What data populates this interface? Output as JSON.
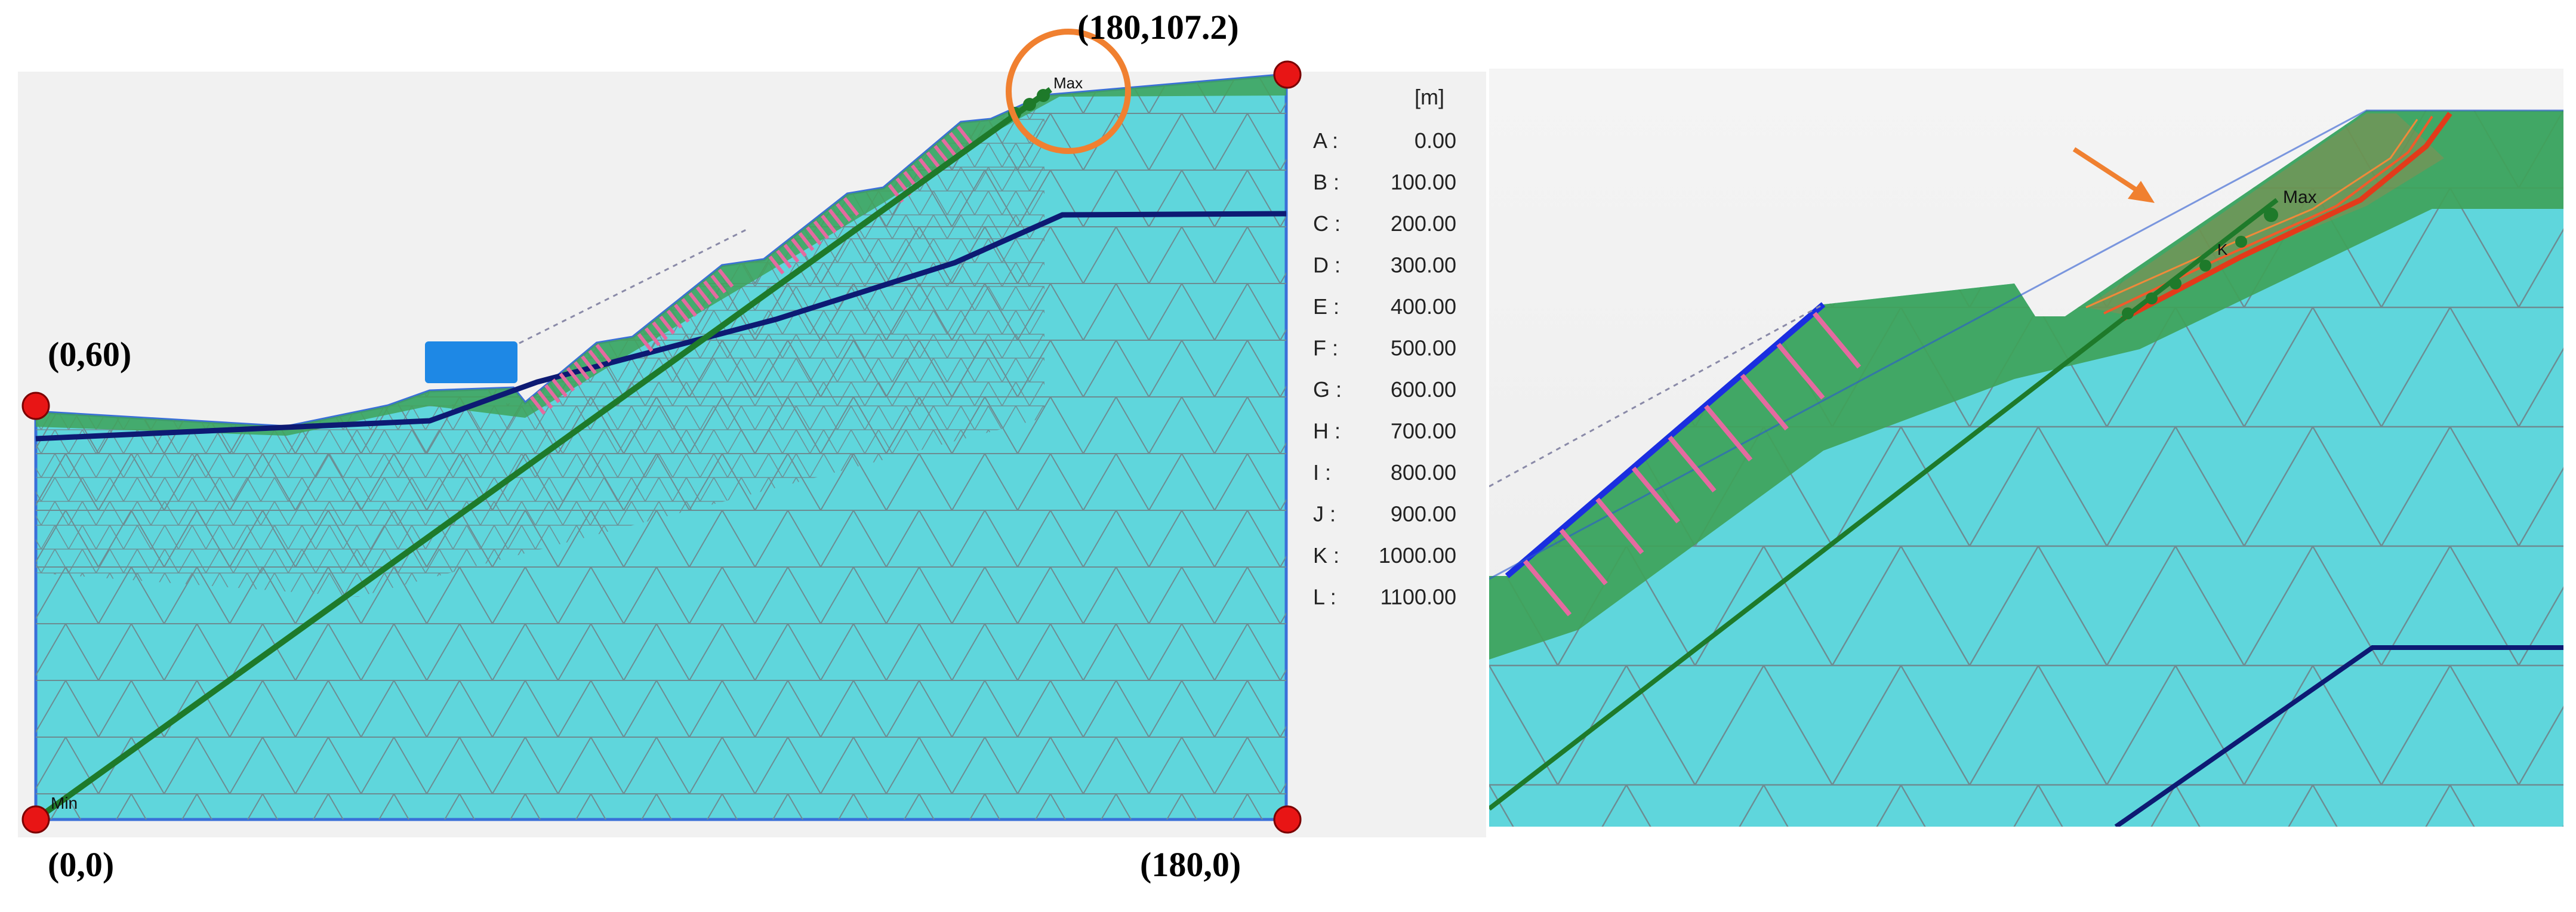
{
  "left_view": {
    "unit_label": "[m]",
    "legend": [
      {
        "key": "A :",
        "value": "0.00"
      },
      {
        "key": "B :",
        "value": "100.00"
      },
      {
        "key": "C :",
        "value": "200.00"
      },
      {
        "key": "D :",
        "value": "300.00"
      },
      {
        "key": "E :",
        "value": "400.00"
      },
      {
        "key": "F :",
        "value": "500.00"
      },
      {
        "key": "G :",
        "value": "600.00"
      },
      {
        "key": "H :",
        "value": "700.00"
      },
      {
        "key": "I :",
        "value": "800.00"
      },
      {
        "key": "J :",
        "value": "900.00"
      },
      {
        "key": "K :",
        "value": "1000.00"
      },
      {
        "key": "L :",
        "value": "1100.00"
      }
    ],
    "corner_labels": {
      "top_left": "(0,60)",
      "top_right": "(180,107.2)",
      "bottom_left": "(0,0)",
      "bottom_right": "(180,0)"
    },
    "min_label": "Min",
    "max_label": "Max"
  },
  "right_view": {
    "max_label": "Max",
    "k_label": "K"
  },
  "colors": {
    "soil_fill": "#5fd6dc",
    "surface_layer": "#3fa35a",
    "layer_boundary": "#0d1a73",
    "slip_line": "#1e7a2a",
    "anchor": "#e56aa0",
    "marker": "#e81515",
    "highlight_circle": "#f08030",
    "mesh_line": "#6c8c92"
  }
}
